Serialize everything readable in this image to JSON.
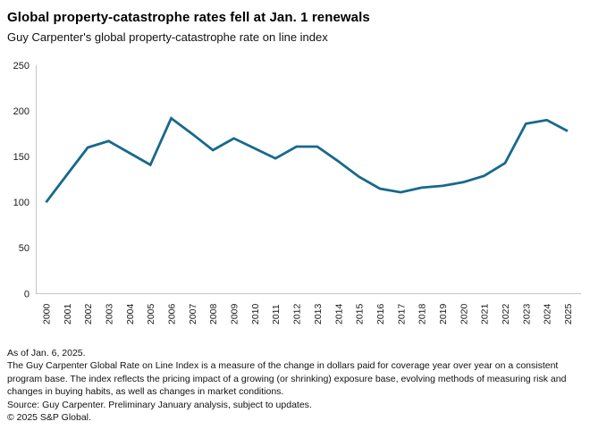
{
  "header": {
    "title": "Global property-catastrophe rates fell at Jan. 1 renewals",
    "subtitle": "Guy Carpenter's global property-catastrophe rate on line index"
  },
  "chart_data": {
    "type": "line",
    "title": "Global property-catastrophe rates fell at Jan. 1 renewals",
    "subtitle": "Guy Carpenter's global property-catastrophe rate on line index",
    "categories": [
      "2000",
      "2001",
      "2002",
      "2003",
      "2004",
      "2005",
      "2006",
      "2007",
      "2008",
      "2009",
      "2010",
      "2011",
      "2012",
      "2013",
      "2014",
      "2015",
      "2016",
      "2017",
      "2018",
      "2019",
      "2020",
      "2021",
      "2022",
      "2023",
      "2024",
      "2025"
    ],
    "series": [
      {
        "name": "Guy Carpenter global property-catastrophe rate on line index",
        "values": [
          100,
          130,
          160,
          167,
          154,
          141,
          192,
          175,
          157,
          170,
          159,
          148,
          161,
          161,
          145,
          128,
          115,
          111,
          116,
          118,
          122,
          129,
          143,
          186,
          190,
          178
        ]
      }
    ],
    "xlabel": "",
    "ylabel": "",
    "ylim": [
      0,
      250
    ],
    "yticks": [
      0,
      50,
      100,
      150,
      200,
      250
    ],
    "grid": false,
    "legend": "none",
    "x_tick_rotation": -90,
    "line_color": "#17698c",
    "axis_color": "#c6c6c6",
    "tick_label_color": "#1a1a1a"
  },
  "footer": {
    "as_of": "As of Jan. 6, 2025.",
    "description": "The Guy Carpenter Global Rate on Line Index is a measure of the change in dollars paid for coverage year over year on a consistent program base. The index reflects the pricing impact of a growing (or shrinking) exposure base, evolving methods of measuring risk and changes in buying habits, as well as changes in market conditions.",
    "source": "Source: Guy Carpenter. Preliminary January analysis, subject to updates.",
    "copyright": "© 2025 S&P Global."
  }
}
